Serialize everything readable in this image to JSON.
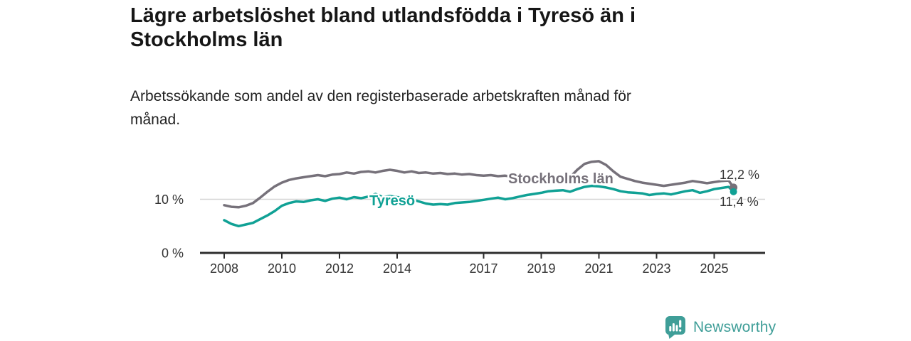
{
  "chart_data": {
    "type": "line",
    "title": "Lägre arbetslöshet bland utlandsfödda i Tyresö än i Stockholms län",
    "title_lines": [
      "Lägre arbetslöshet bland utlandsfödda i Tyresö än i",
      "Stockholms län"
    ],
    "subtitle_lines": [
      "Arbetssökande som andel av den registerbaserade arbetskraften månad för",
      "månad."
    ],
    "xlabel": "",
    "ylabel": "",
    "ylim": [
      0,
      19
    ],
    "grid": "horizontal line at 10% only",
    "legend_position": "inline labels on lines",
    "x_ticks": [
      2008,
      2010,
      2012,
      2014,
      2017,
      2019,
      2021,
      2023,
      2025
    ],
    "y_ticks": [
      {
        "label": "10 %",
        "value": 10
      },
      {
        "label": "0 %",
        "value": 0
      }
    ],
    "x_years": [
      2008,
      2008.25,
      2008.5,
      2008.75,
      2009,
      2009.25,
      2009.5,
      2009.75,
      2010,
      2010.25,
      2010.5,
      2010.75,
      2011,
      2011.25,
      2011.5,
      2011.75,
      2012,
      2012.25,
      2012.5,
      2012.75,
      2013,
      2013.25,
      2013.5,
      2013.75,
      2014,
      2014.25,
      2014.5,
      2014.75,
      2015,
      2015.25,
      2015.5,
      2015.75,
      2016,
      2016.25,
      2016.5,
      2016.75,
      2017,
      2017.25,
      2017.5,
      2017.75,
      2018,
      2018.25,
      2018.5,
      2018.75,
      2019,
      2019.25,
      2019.5,
      2019.75,
      2020,
      2020.25,
      2020.5,
      2020.75,
      2021,
      2021.25,
      2021.5,
      2021.75,
      2022,
      2022.25,
      2022.5,
      2022.75,
      2023,
      2023.25,
      2023.5,
      2023.75,
      2024,
      2024.25,
      2024.5,
      2024.75,
      2025,
      2025.25,
      2025.5,
      2025.67
    ],
    "series": [
      {
        "name": "Stockholms län",
        "color": "#76717a",
        "end_label": "12,2 %",
        "end_value": 12.2,
        "values": [
          8.9,
          8.6,
          8.5,
          8.8,
          9.3,
          10.3,
          11.4,
          12.4,
          13.1,
          13.6,
          13.9,
          14.1,
          14.3,
          14.5,
          14.3,
          14.6,
          14.7,
          15.0,
          14.8,
          15.1,
          15.2,
          15.0,
          15.3,
          15.5,
          15.3,
          15.0,
          15.2,
          14.9,
          15.0,
          14.8,
          14.9,
          14.7,
          14.8,
          14.6,
          14.7,
          14.5,
          14.4,
          14.5,
          14.3,
          14.4,
          14.2,
          14.1,
          14.0,
          14.1,
          13.9,
          14.0,
          13.9,
          14.0,
          14.1,
          15.5,
          16.6,
          17.0,
          17.1,
          16.4,
          15.2,
          14.2,
          13.8,
          13.4,
          13.1,
          12.9,
          12.7,
          12.5,
          12.7,
          12.9,
          13.1,
          13.4,
          13.2,
          13.0,
          13.2,
          13.4,
          13.5,
          12.2
        ]
      },
      {
        "name": "Tyresö",
        "color": "#10a195",
        "end_label": "11,4 %",
        "end_value": 11.4,
        "values": [
          6.1,
          5.4,
          5.0,
          5.3,
          5.6,
          6.3,
          7.0,
          7.8,
          8.8,
          9.3,
          9.6,
          9.5,
          9.8,
          10.0,
          9.7,
          10.1,
          10.3,
          10.0,
          10.4,
          10.2,
          10.5,
          11.0,
          10.4,
          10.6,
          10.4,
          10.3,
          10.0,
          9.6,
          9.2,
          9.0,
          9.1,
          9.0,
          9.3,
          9.4,
          9.5,
          9.7,
          9.9,
          10.1,
          10.3,
          10.0,
          10.2,
          10.5,
          10.8,
          11.0,
          11.2,
          11.5,
          11.6,
          11.7,
          11.4,
          11.9,
          12.3,
          12.5,
          12.4,
          12.2,
          11.9,
          11.5,
          11.3,
          11.2,
          11.1,
          10.8,
          11.0,
          11.1,
          10.9,
          11.2,
          11.5,
          11.7,
          11.2,
          11.5,
          11.9,
          12.1,
          12.3,
          11.4
        ]
      }
    ],
    "colors": {
      "axis": "#2d2d2d",
      "grid": "#d4d4d4",
      "tick_text": "#333333",
      "value_label_text": "#333333"
    }
  },
  "branding": {
    "logo_text": "Newsworthy",
    "logo_color": "#3f9e98"
  }
}
